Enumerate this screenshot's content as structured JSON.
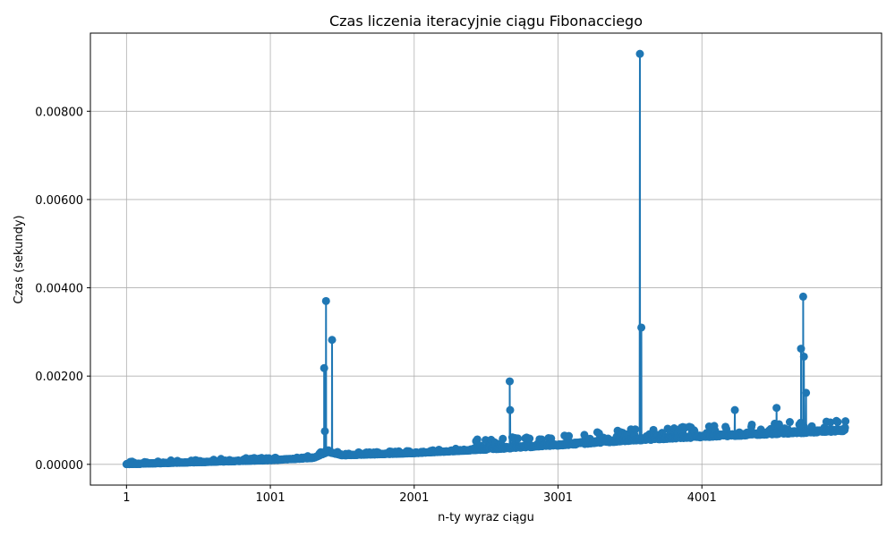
{
  "chart_data": {
    "type": "line",
    "title": "Czas liczenia iteracyjnie ciągu Fibonacciego",
    "xlabel": "n-ty wyraz ciągu",
    "ylabel": "Czas (sekundy)",
    "xlim": [
      -250,
      5250
    ],
    "ylim": [
      -0.00047,
      0.00977
    ],
    "xticks": [
      1,
      1001,
      2001,
      3001,
      4001
    ],
    "xtick_labels": [
      "1",
      "1001",
      "2001",
      "3001",
      "4001"
    ],
    "yticks": [
      0,
      0.002,
      0.004,
      0.006,
      0.008
    ],
    "ytick_labels": [
      "0.00000",
      "0.00200",
      "0.00400",
      "0.00600",
      "0.00800"
    ],
    "grid": true,
    "color": "#1f77b4",
    "marker": "circle",
    "x_range": [
      1,
      5000
    ],
    "baseline_points": [
      [
        1,
        0.0
      ],
      [
        1000,
        9e-05
      ],
      [
        1300,
        0.00014
      ],
      [
        1400,
        0.00028
      ],
      [
        1500,
        0.0002
      ],
      [
        2000,
        0.00025
      ],
      [
        2500,
        0.00033
      ],
      [
        3000,
        0.00042
      ],
      [
        3500,
        0.00053
      ],
      [
        4000,
        0.00061
      ],
      [
        4500,
        0.00068
      ],
      [
        5000,
        0.00075
      ]
    ],
    "spikes": [
      {
        "x": 1375,
        "y": 0.00218
      },
      {
        "x": 1380,
        "y": 0.00075
      },
      {
        "x": 1388,
        "y": 0.0037
      },
      {
        "x": 1430,
        "y": 0.00282
      },
      {
        "x": 2665,
        "y": 0.00188
      },
      {
        "x": 2668,
        "y": 0.00123
      },
      {
        "x": 3570,
        "y": 0.0093
      },
      {
        "x": 3580,
        "y": 0.0031
      },
      {
        "x": 4690,
        "y": 0.00262
      },
      {
        "x": 4705,
        "y": 0.0038
      },
      {
        "x": 4710,
        "y": 0.00244
      },
      {
        "x": 4725,
        "y": 0.00162
      },
      {
        "x": 4230,
        "y": 0.00123
      },
      {
        "x": 4520,
        "y": 0.00128
      }
    ]
  }
}
